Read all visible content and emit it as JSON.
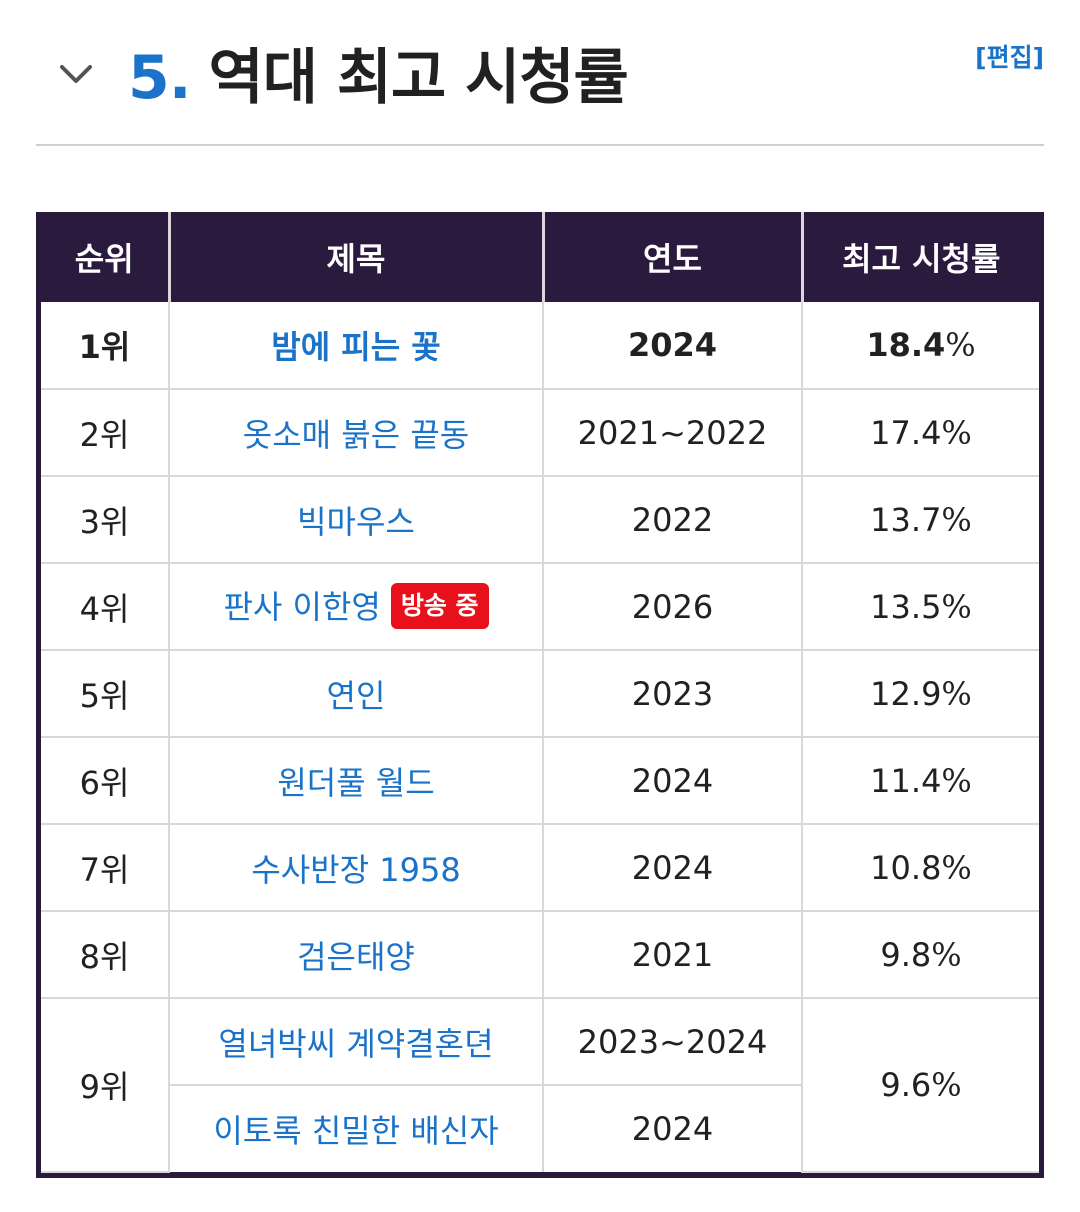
{
  "section": {
    "number": "5",
    "dot": ".",
    "title": "역대 최고 시청률",
    "edit_label": "[편집]"
  },
  "table": {
    "headers": {
      "rank": "순위",
      "title": "제목",
      "year": "연도",
      "rating": "최고 시청률"
    },
    "rows": [
      {
        "rank": "1위",
        "title": "밤에 피는 꽃",
        "year": "2024",
        "rating": "18.4",
        "bold": true
      },
      {
        "rank": "2위",
        "title": "옷소매 붉은 끝동",
        "year": "2021~2022",
        "rating": "17.4"
      },
      {
        "rank": "3위",
        "title": "빅마우스",
        "year": "2022",
        "rating": "13.7"
      },
      {
        "rank": "4위",
        "title": "판사 이한영",
        "badge": "방송 중",
        "year": "2026",
        "rating": "13.5"
      },
      {
        "rank": "5위",
        "title": "연인",
        "year": "2023",
        "rating": "12.9"
      },
      {
        "rank": "6위",
        "title": "원더풀 월드",
        "year": "2024",
        "rating": "11.4"
      },
      {
        "rank": "7위",
        "title": "수사반장 1958",
        "year": "2024",
        "rating": "10.8"
      },
      {
        "rank": "8위",
        "title": "검은태양",
        "year": "2021",
        "rating": "9.8"
      },
      {
        "rank": "9위",
        "title": "열녀박씨 계약결혼뎐",
        "year": "2023~2024",
        "rating": "9.6"
      },
      {
        "title": "이토록 친밀한 배신자",
        "year": "2024"
      }
    ],
    "percent_sign": "%"
  },
  "icons": {
    "collapse": "chevron-down-icon"
  },
  "colors": {
    "accent": "#1a73c9",
    "header_bg": "#2a1a3e",
    "badge": "#e8101b"
  }
}
